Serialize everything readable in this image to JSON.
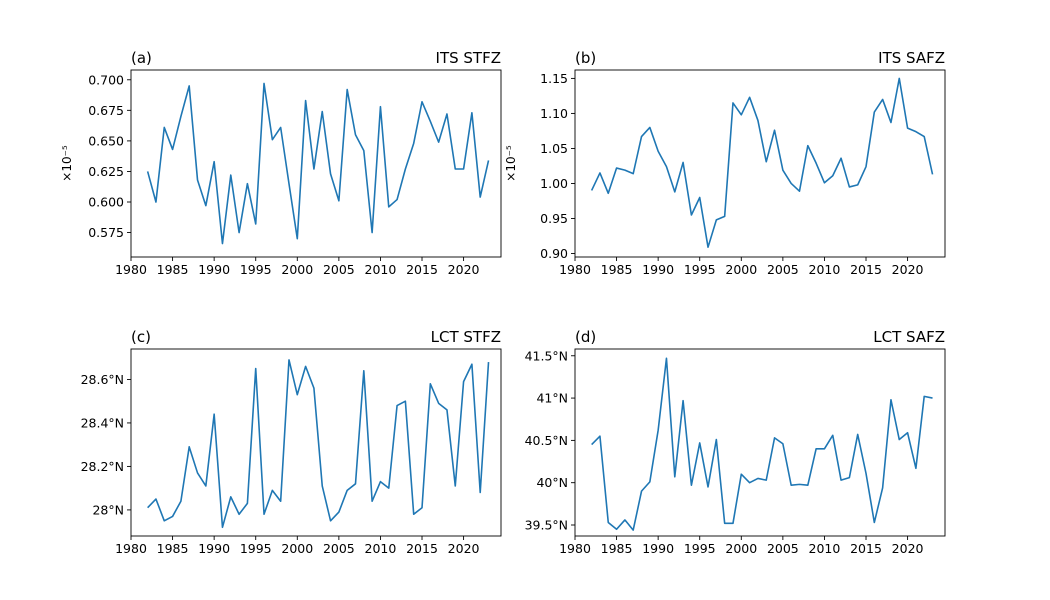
{
  "figure": {
    "background": "#ffffff",
    "line_color": "#1f77b4"
  },
  "chart_data": [
    {
      "type": "line",
      "panel_label": "(a)",
      "title": "ITS STFZ",
      "ylabel": "×10⁻⁵",
      "xlim": [
        1980,
        2024.5
      ],
      "ylim": [
        0.555,
        0.708
      ],
      "x_ticks": [
        1980,
        1985,
        1990,
        1995,
        2000,
        2005,
        2010,
        2015,
        2020
      ],
      "x_tick_labels": [
        "1980",
        "1985",
        "1990",
        "1995",
        "2000",
        "2005",
        "2010",
        "2015",
        "2020"
      ],
      "y_ticks": [
        0.575,
        0.6,
        0.625,
        0.65,
        0.675,
        0.7
      ],
      "y_tick_labels": [
        "0.575",
        "0.600",
        "0.625",
        "0.650",
        "0.675",
        "0.700"
      ],
      "x": [
        1982,
        1983,
        1984,
        1985,
        1986,
        1987,
        1988,
        1989,
        1990,
        1991,
        1992,
        1993,
        1994,
        1995,
        1996,
        1997,
        1998,
        1999,
        2000,
        2001,
        2002,
        2003,
        2004,
        2005,
        2006,
        2007,
        2008,
        2009,
        2010,
        2011,
        2012,
        2013,
        2014,
        2015,
        2016,
        2017,
        2018,
        2019,
        2020,
        2021,
        2022,
        2023
      ],
      "values": [
        0.625,
        0.6,
        0.661,
        0.643,
        0.67,
        0.695,
        0.618,
        0.597,
        0.633,
        0.566,
        0.622,
        0.575,
        0.615,
        0.582,
        0.697,
        0.651,
        0.661,
        0.615,
        0.57,
        0.683,
        0.627,
        0.674,
        0.623,
        0.601,
        0.692,
        0.655,
        0.642,
        0.575,
        0.678,
        0.596,
        0.602,
        0.627,
        0.648,
        0.682,
        0.666,
        0.649,
        0.672,
        0.627,
        0.627,
        0.673,
        0.604,
        0.634
      ]
    },
    {
      "type": "line",
      "panel_label": "(b)",
      "title": "ITS SAFZ",
      "ylabel": "×10⁻⁵",
      "xlim": [
        1980,
        2024.5
      ],
      "ylim": [
        0.895,
        1.162
      ],
      "x_ticks": [
        1980,
        1985,
        1990,
        1995,
        2000,
        2005,
        2010,
        2015,
        2020
      ],
      "x_tick_labels": [
        "1980",
        "1985",
        "1990",
        "1995",
        "2000",
        "2005",
        "2010",
        "2015",
        "2020"
      ],
      "y_ticks": [
        0.9,
        0.95,
        1.0,
        1.05,
        1.1,
        1.15
      ],
      "y_tick_labels": [
        "0.90",
        "0.95",
        "1.00",
        "1.05",
        "1.10",
        "1.15"
      ],
      "x": [
        1982,
        1983,
        1984,
        1985,
        1986,
        1987,
        1988,
        1989,
        1990,
        1991,
        1992,
        1993,
        1994,
        1995,
        1996,
        1997,
        1998,
        1999,
        2000,
        2001,
        2002,
        2003,
        2004,
        2005,
        2006,
        2007,
        2008,
        2009,
        2010,
        2011,
        2012,
        2013,
        2014,
        2015,
        2016,
        2017,
        2018,
        2019,
        2020,
        2021,
        2022,
        2023
      ],
      "values": [
        0.99,
        1.015,
        0.986,
        1.022,
        1.019,
        1.014,
        1.067,
        1.08,
        1.046,
        1.024,
        0.988,
        1.03,
        0.955,
        0.98,
        0.909,
        0.948,
        0.953,
        1.115,
        1.098,
        1.123,
        1.09,
        1.031,
        1.076,
        1.019,
        1.0,
        0.989,
        1.054,
        1.029,
        1.001,
        1.011,
        1.036,
        0.995,
        0.998,
        1.024,
        1.102,
        1.12,
        1.087,
        1.15,
        1.079,
        1.074,
        1.067,
        1.013
      ]
    },
    {
      "type": "line",
      "panel_label": "(c)",
      "title": "LCT STFZ",
      "ylabel": "",
      "xlim": [
        1980,
        2024.5
      ],
      "ylim": [
        27.88,
        28.74
      ],
      "x_ticks": [
        1980,
        1985,
        1990,
        1995,
        2000,
        2005,
        2010,
        2015,
        2020
      ],
      "x_tick_labels": [
        "1980",
        "1985",
        "1990",
        "1995",
        "2000",
        "2005",
        "2010",
        "2015",
        "2020"
      ],
      "y_ticks": [
        28.0,
        28.2,
        28.4,
        28.6
      ],
      "y_tick_labels": [
        "28°N",
        "28.2°N",
        "28.4°N",
        "28.6°N"
      ],
      "x": [
        1982,
        1983,
        1984,
        1985,
        1986,
        1987,
        1988,
        1989,
        1990,
        1991,
        1992,
        1993,
        1994,
        1995,
        1996,
        1997,
        1998,
        1999,
        2000,
        2001,
        2002,
        2003,
        2004,
        2005,
        2006,
        2007,
        2008,
        2009,
        2010,
        2011,
        2012,
        2013,
        2014,
        2015,
        2016,
        2017,
        2018,
        2019,
        2020,
        2021,
        2022,
        2023
      ],
      "values": [
        28.01,
        28.05,
        27.95,
        27.97,
        28.04,
        28.29,
        28.17,
        28.11,
        28.44,
        27.92,
        28.06,
        27.98,
        28.03,
        28.65,
        27.98,
        28.09,
        28.04,
        28.69,
        28.53,
        28.66,
        28.56,
        28.11,
        27.95,
        27.99,
        28.09,
        28.12,
        28.64,
        28.04,
        28.13,
        28.1,
        28.48,
        28.5,
        27.98,
        28.01,
        28.58,
        28.49,
        28.46,
        28.11,
        28.59,
        28.67,
        28.08,
        28.68
      ]
    },
    {
      "type": "line",
      "panel_label": "(d)",
      "title": "LCT SAFZ",
      "ylabel": "",
      "xlim": [
        1980,
        2024.5
      ],
      "ylim": [
        39.37,
        41.58
      ],
      "x_ticks": [
        1980,
        1985,
        1990,
        1995,
        2000,
        2005,
        2010,
        2015,
        2020
      ],
      "x_tick_labels": [
        "1980",
        "1985",
        "1990",
        "1995",
        "2000",
        "2005",
        "2010",
        "2015",
        "2020"
      ],
      "y_ticks": [
        39.5,
        40.0,
        40.5,
        41.0,
        41.5
      ],
      "y_tick_labels": [
        "39.5°N",
        "40°N",
        "40.5°N",
        "41°N",
        "41.5°N"
      ],
      "x": [
        1982,
        1983,
        1984,
        1985,
        1986,
        1987,
        1988,
        1989,
        1990,
        1991,
        1992,
        1993,
        1994,
        1995,
        1996,
        1997,
        1998,
        1999,
        2000,
        2001,
        2002,
        2003,
        2004,
        2005,
        2006,
        2007,
        2008,
        2009,
        2010,
        2011,
        2012,
        2013,
        2014,
        2015,
        2016,
        2017,
        2018,
        2019,
        2020,
        2021,
        2022,
        2023
      ],
      "values": [
        40.45,
        40.55,
        39.53,
        39.45,
        39.56,
        39.44,
        39.9,
        40.01,
        40.62,
        41.47,
        40.07,
        40.97,
        39.97,
        40.47,
        39.95,
        40.51,
        39.52,
        39.52,
        40.1,
        40.0,
        40.05,
        40.03,
        40.53,
        40.46,
        39.97,
        39.98,
        39.97,
        40.4,
        40.4,
        40.56,
        40.03,
        40.06,
        40.57,
        40.11,
        39.53,
        39.94,
        40.98,
        40.51,
        40.59,
        40.17,
        41.02,
        41.0
      ]
    }
  ]
}
